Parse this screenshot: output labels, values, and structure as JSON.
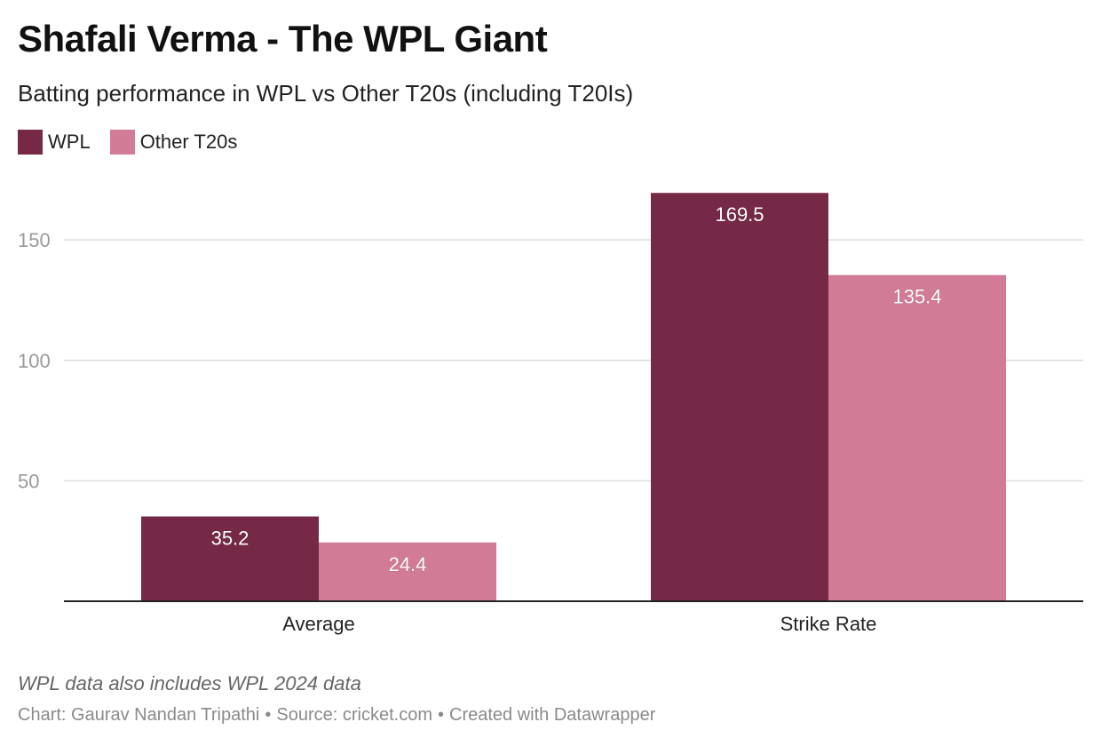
{
  "header": {
    "title": "Shafali Verma - The WPL Giant",
    "subtitle": "Batting performance in WPL vs Other T20s (including T20Is)"
  },
  "legend": [
    {
      "label": "WPL",
      "color": "#752946"
    },
    {
      "label": "Other T20s",
      "color": "#d27b97"
    }
  ],
  "chart_data": {
    "type": "bar",
    "categories": [
      "Average",
      "Strike Rate"
    ],
    "series": [
      {
        "name": "WPL",
        "color": "#752946",
        "values": [
          35.2,
          169.5
        ],
        "labels": [
          "35.2",
          "169.5"
        ]
      },
      {
        "name": "Other T20s",
        "color": "#d27b97",
        "values": [
          24.4,
          135.4
        ],
        "labels": [
          "24.4",
          "135.4"
        ]
      }
    ],
    "y_ticks": [
      50,
      100,
      150
    ],
    "ylim": [
      0,
      175
    ],
    "grid": true,
    "legend_position": "top-left"
  },
  "footer": {
    "note": "WPL data also includes WPL 2024 data",
    "credit": "Chart: Gaurav Nandan Tripathi",
    "source": "Source: cricket.com",
    "tool": "Created with Datawrapper",
    "separator": "•"
  }
}
